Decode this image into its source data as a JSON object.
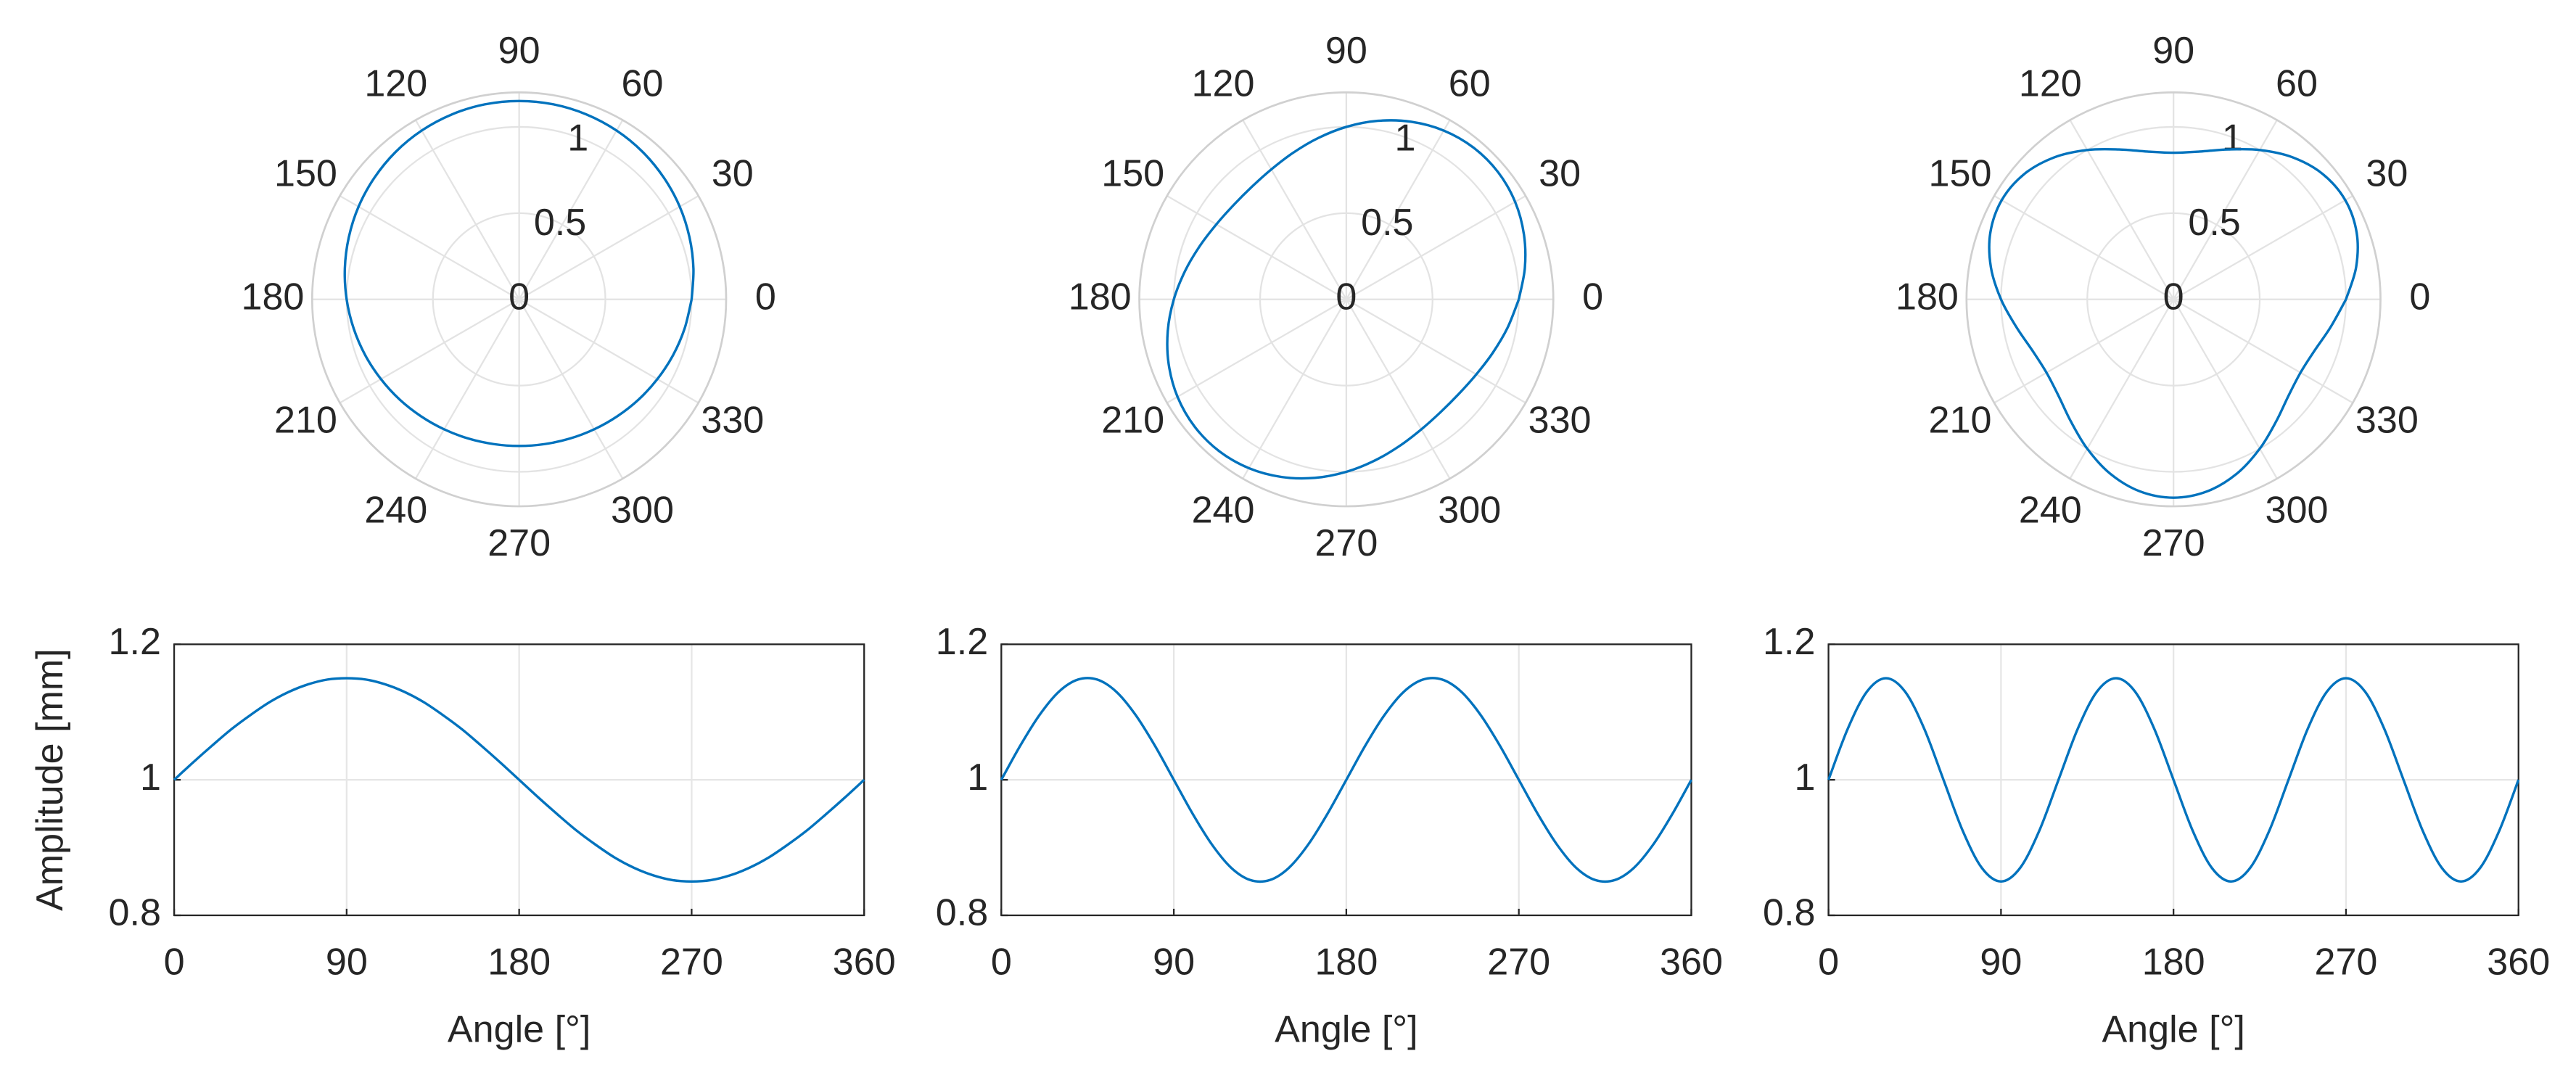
{
  "chart_data": [
    {
      "type": "polar",
      "color": "#0072bd",
      "rlim": [
        0,
        1.2
      ],
      "rticks": [
        0,
        0.5,
        1
      ],
      "thetaticks": [
        0,
        30,
        60,
        90,
        120,
        150,
        180,
        210,
        240,
        270,
        300,
        330
      ],
      "theta": [
        0,
        10,
        20,
        30,
        40,
        50,
        60,
        70,
        80,
        90,
        100,
        110,
        120,
        130,
        140,
        150,
        160,
        170,
        180,
        190,
        200,
        210,
        220,
        230,
        240,
        250,
        260,
        270,
        280,
        290,
        300,
        310,
        320,
        330,
        340,
        350,
        360
      ],
      "values": [
        1,
        1.026,
        1.051,
        1.075,
        1.096,
        1.115,
        1.13,
        1.141,
        1.148,
        1.15,
        1.148,
        1.141,
        1.13,
        1.115,
        1.096,
        1.075,
        1.051,
        1.026,
        1,
        0.974,
        0.949,
        0.925,
        0.904,
        0.885,
        0.87,
        0.859,
        0.852,
        0.85,
        0.852,
        0.859,
        0.87,
        0.885,
        0.904,
        0.925,
        0.949,
        0.974,
        1
      ]
    },
    {
      "type": "polar",
      "color": "#0072bd",
      "rlim": [
        0,
        1.2
      ],
      "rticks": [
        0,
        0.5,
        1
      ],
      "thetaticks": [
        0,
        30,
        60,
        90,
        120,
        150,
        180,
        210,
        240,
        270,
        300,
        330
      ],
      "theta": [
        0,
        10,
        20,
        30,
        40,
        50,
        60,
        70,
        80,
        90,
        100,
        110,
        120,
        130,
        140,
        150,
        160,
        170,
        180,
        190,
        200,
        210,
        220,
        230,
        240,
        250,
        260,
        270,
        280,
        290,
        300,
        310,
        320,
        330,
        340,
        350,
        360
      ],
      "values": [
        1,
        1.051,
        1.096,
        1.13,
        1.148,
        1.148,
        1.13,
        1.096,
        1.051,
        1,
        0.949,
        0.904,
        0.87,
        0.852,
        0.852,
        0.87,
        0.904,
        0.949,
        1,
        1.051,
        1.096,
        1.13,
        1.148,
        1.148,
        1.13,
        1.096,
        1.051,
        1,
        0.949,
        0.904,
        0.87,
        0.852,
        0.852,
        0.87,
        0.904,
        0.949,
        1
      ]
    },
    {
      "type": "polar",
      "color": "#0072bd",
      "rlim": [
        0,
        1.2
      ],
      "rticks": [
        0,
        0.5,
        1
      ],
      "thetaticks": [
        0,
        30,
        60,
        90,
        120,
        150,
        180,
        210,
        240,
        270,
        300,
        330
      ],
      "theta": [
        0,
        10,
        20,
        30,
        40,
        50,
        60,
        70,
        80,
        90,
        100,
        110,
        120,
        130,
        140,
        150,
        160,
        170,
        180,
        190,
        200,
        210,
        220,
        230,
        240,
        250,
        260,
        270,
        280,
        290,
        300,
        310,
        320,
        330,
        340,
        350,
        360
      ],
      "values": [
        1,
        1.075,
        1.13,
        1.15,
        1.13,
        1.075,
        1,
        0.925,
        0.87,
        0.85,
        0.87,
        0.925,
        1,
        1.075,
        1.13,
        1.15,
        1.13,
        1.075,
        1,
        0.925,
        0.87,
        0.85,
        0.87,
        0.925,
        1,
        1.075,
        1.13,
        1.15,
        1.13,
        1.075,
        1,
        0.925,
        0.87,
        0.85,
        0.87,
        0.925,
        1
      ]
    },
    {
      "type": "line",
      "color": "#0072bd",
      "grid": true,
      "ylabel": "Amplitude [mm]",
      "xlabel": "Angle [°]",
      "xlim": [
        0,
        360
      ],
      "xticks": [
        0,
        90,
        180,
        270,
        360
      ],
      "ylim": [
        0.8,
        1.2
      ],
      "yticks": [
        0.8,
        1,
        1.2
      ],
      "x": [
        0,
        10,
        20,
        30,
        40,
        50,
        60,
        70,
        80,
        90,
        100,
        110,
        120,
        130,
        140,
        150,
        160,
        170,
        180,
        190,
        200,
        210,
        220,
        230,
        240,
        250,
        260,
        270,
        280,
        290,
        300,
        310,
        320,
        330,
        340,
        350,
        360
      ],
      "values": [
        1,
        1.026,
        1.051,
        1.075,
        1.096,
        1.115,
        1.13,
        1.141,
        1.148,
        1.15,
        1.148,
        1.141,
        1.13,
        1.115,
        1.096,
        1.075,
        1.051,
        1.026,
        1,
        0.974,
        0.949,
        0.925,
        0.904,
        0.885,
        0.87,
        0.859,
        0.852,
        0.85,
        0.852,
        0.859,
        0.87,
        0.885,
        0.904,
        0.925,
        0.949,
        0.974,
        1
      ]
    },
    {
      "type": "line",
      "color": "#0072bd",
      "grid": true,
      "xlabel": "Angle [°]",
      "xlim": [
        0,
        360
      ],
      "xticks": [
        0,
        90,
        180,
        270,
        360
      ],
      "ylim": [
        0.8,
        1.2
      ],
      "yticks": [
        0.8,
        1,
        1.2
      ],
      "x": [
        0,
        10,
        20,
        30,
        40,
        50,
        60,
        70,
        80,
        90,
        100,
        110,
        120,
        130,
        140,
        150,
        160,
        170,
        180,
        190,
        200,
        210,
        220,
        230,
        240,
        250,
        260,
        270,
        280,
        290,
        300,
        310,
        320,
        330,
        340,
        350,
        360
      ],
      "values": [
        1,
        1.051,
        1.096,
        1.13,
        1.148,
        1.148,
        1.13,
        1.096,
        1.051,
        1,
        0.949,
        0.904,
        0.87,
        0.852,
        0.852,
        0.87,
        0.904,
        0.949,
        1,
        1.051,
        1.096,
        1.13,
        1.148,
        1.148,
        1.13,
        1.096,
        1.051,
        1,
        0.949,
        0.904,
        0.87,
        0.852,
        0.852,
        0.87,
        0.904,
        0.949,
        1
      ]
    },
    {
      "type": "line",
      "color": "#0072bd",
      "grid": true,
      "xlabel": "Angle [°]",
      "xlim": [
        0,
        360
      ],
      "xticks": [
        0,
        90,
        180,
        270,
        360
      ],
      "ylim": [
        0.8,
        1.2
      ],
      "yticks": [
        0.8,
        1,
        1.2
      ],
      "x": [
        0,
        10,
        20,
        30,
        40,
        50,
        60,
        70,
        80,
        90,
        100,
        110,
        120,
        130,
        140,
        150,
        160,
        170,
        180,
        190,
        200,
        210,
        220,
        230,
        240,
        250,
        260,
        270,
        280,
        290,
        300,
        310,
        320,
        330,
        340,
        350,
        360
      ],
      "values": [
        1,
        1.075,
        1.13,
        1.15,
        1.13,
        1.075,
        1,
        0.925,
        0.87,
        0.85,
        0.87,
        0.925,
        1,
        1.075,
        1.13,
        1.15,
        1.13,
        1.075,
        1,
        0.925,
        0.87,
        0.85,
        0.87,
        0.925,
        1,
        1.075,
        1.13,
        1.15,
        1.13,
        1.075,
        1,
        0.925,
        0.87,
        0.85,
        0.87,
        0.925,
        1
      ]
    }
  ]
}
